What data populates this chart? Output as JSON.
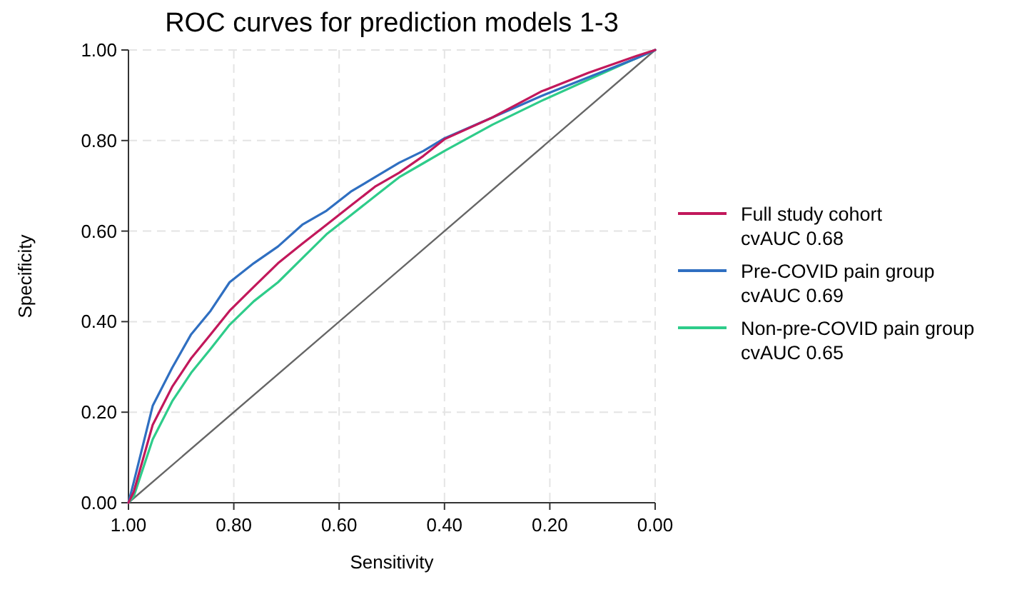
{
  "chart_data": {
    "type": "line",
    "title": "ROC curves for prediction models 1-3",
    "xlabel": "Sensitivity",
    "ylabel": "Specificity",
    "xlim": [
      1,
      0
    ],
    "ylim": [
      0,
      1
    ],
    "xticks": [
      {
        "value": 1,
        "label": "1.00"
      },
      {
        "value": 0.8,
        "label": "0.80"
      },
      {
        "value": 0.6,
        "label": "0.60"
      },
      {
        "value": 0.4,
        "label": "0.40"
      },
      {
        "value": 0.2,
        "label": "0.20"
      },
      {
        "value": 0,
        "label": "0.00"
      }
    ],
    "yticks": [
      {
        "value": 0,
        "label": "0.00"
      },
      {
        "value": 0.2,
        "label": "0.20"
      },
      {
        "value": 0.4,
        "label": "0.40"
      },
      {
        "value": 0.6,
        "label": "0.60"
      },
      {
        "value": 0.8,
        "label": "0.80"
      },
      {
        "value": 1,
        "label": "1.00"
      }
    ],
    "grid": true,
    "legend": "right",
    "line_style": "solid",
    "series": [
      {
        "name": "Full study cohort\ncvAUC 0.68",
        "color": "#c2185b",
        "x": [
          1,
          0.99,
          0.954,
          0.917,
          0.881,
          0.844,
          0.808,
          0.762,
          0.716,
          0.67,
          0.624,
          0.578,
          0.532,
          0.486,
          0.44,
          0.4,
          0.309,
          0.217,
          0.126,
          0.035,
          0
        ],
        "values": [
          0,
          0.024,
          0.172,
          0.256,
          0.319,
          0.372,
          0.424,
          0.477,
          0.529,
          0.572,
          0.614,
          0.656,
          0.698,
          0.729,
          0.766,
          0.803,
          0.851,
          0.908,
          0.95,
          0.987,
          1
        ]
      },
      {
        "name": "Pre-COVID pain group\ncvAUC 0.69",
        "color": "#2f6fc1",
        "x": [
          1,
          0.99,
          0.954,
          0.917,
          0.881,
          0.844,
          0.808,
          0.762,
          0.716,
          0.67,
          0.624,
          0.578,
          0.532,
          0.486,
          0.44,
          0.4,
          0.309,
          0.217,
          0.126,
          0.035,
          0
        ],
        "values": [
          0,
          0.045,
          0.214,
          0.298,
          0.372,
          0.424,
          0.487,
          0.529,
          0.566,
          0.614,
          0.645,
          0.687,
          0.719,
          0.751,
          0.777,
          0.805,
          0.851,
          0.898,
          0.94,
          0.982,
          1
        ]
      },
      {
        "name": "Non-pre-COVID pain group\ncvAUC 0.65",
        "color": "#2ecc8a",
        "x": [
          1,
          0.99,
          0.954,
          0.917,
          0.881,
          0.844,
          0.808,
          0.762,
          0.716,
          0.67,
          0.624,
          0.578,
          0.532,
          0.486,
          0.44,
          0.4,
          0.309,
          0.217,
          0.126,
          0.035,
          0
        ],
        "values": [
          0,
          0.014,
          0.14,
          0.224,
          0.287,
          0.34,
          0.393,
          0.445,
          0.487,
          0.54,
          0.593,
          0.635,
          0.677,
          0.719,
          0.75,
          0.777,
          0.835,
          0.887,
          0.935,
          0.982,
          1
        ]
      },
      {
        "color": "#666666",
        "x": [
          1,
          0
        ],
        "values": [
          0,
          1
        ]
      }
    ]
  }
}
